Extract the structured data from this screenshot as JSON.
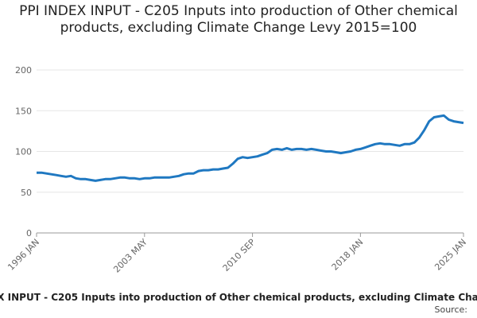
{
  "chart_data": {
    "type": "line",
    "title": "PPI INDEX INPUT - C205 Inputs into production of Other chemical products, excluding Climate Change Levy 2015=100",
    "source": "Source:",
    "x": [
      "1996 JAN",
      "1996 MAY",
      "1996 SEP",
      "1997 JAN",
      "1997 MAY",
      "1997 SEP",
      "1998 JAN",
      "1998 MAY",
      "1998 SEP",
      "1999 JAN",
      "1999 MAY",
      "1999 SEP",
      "2000 JAN",
      "2000 MAY",
      "2000 SEP",
      "2001 JAN",
      "2001 MAY",
      "2001 SEP",
      "2002 JAN",
      "2002 MAY",
      "2002 SEP",
      "2003 JAN",
      "2003 MAY",
      "2003 SEP",
      "2004 JAN",
      "2004 MAY",
      "2004 SEP",
      "2005 JAN",
      "2005 MAY",
      "2005 SEP",
      "2006 JAN",
      "2006 MAY",
      "2006 SEP",
      "2007 JAN",
      "2007 MAY",
      "2007 SEP",
      "2008 JAN",
      "2008 MAY",
      "2008 SEP",
      "2009 JAN",
      "2009 MAY",
      "2009 SEP",
      "2010 JAN",
      "2010 MAY",
      "2010 SEP",
      "2011 JAN",
      "2011 MAY",
      "2011 SEP",
      "2012 JAN",
      "2012 MAY",
      "2012 SEP",
      "2013 JAN",
      "2013 MAY",
      "2013 SEP",
      "2014 JAN",
      "2014 MAY",
      "2014 SEP",
      "2015 JAN",
      "2015 MAY",
      "2015 SEP",
      "2016 JAN",
      "2016 MAY",
      "2016 SEP",
      "2017 JAN",
      "2017 MAY",
      "2017 SEP",
      "2018 JAN",
      "2018 MAY",
      "2018 SEP",
      "2019 JAN",
      "2019 MAY",
      "2019 SEP",
      "2020 JAN",
      "2020 MAY",
      "2020 SEP",
      "2021 JAN",
      "2021 MAY",
      "2021 SEP",
      "2022 JAN",
      "2022 MAY",
      "2022 SEP",
      "2023 JAN",
      "2023 MAY",
      "2023 SEP",
      "2024 JAN",
      "2024 MAY",
      "2024 SEP",
      "2025 JAN"
    ],
    "series": [
      {
        "name": "PPI INDEX INPUT - C205 Inputs into production of Other chemical products, excluding Climate Change Levy",
        "color": "#1f78c1",
        "values": [
          74,
          74,
          73,
          72,
          71,
          70,
          69,
          70,
          67,
          66,
          66,
          65,
          64,
          65,
          66,
          66,
          67,
          68,
          68,
          67,
          67,
          66,
          67,
          67,
          68,
          68,
          68,
          68,
          69,
          70,
          72,
          73,
          73,
          76,
          77,
          77,
          78,
          78,
          79,
          80,
          85,
          91,
          93,
          92,
          93,
          94,
          96,
          98,
          102,
          103,
          102,
          104,
          102,
          103,
          103,
          102,
          103,
          102,
          101,
          100,
          100,
          99,
          98,
          99,
          100,
          102,
          103,
          105,
          107,
          109,
          110,
          109,
          109,
          108,
          107,
          109,
          109,
          111,
          117,
          126,
          137,
          142,
          143,
          144,
          139,
          137,
          136,
          135
        ]
      }
    ],
    "ylim": [
      0,
      200
    ],
    "yticks": [
      0,
      50,
      100,
      150,
      200
    ],
    "grid": true
  }
}
